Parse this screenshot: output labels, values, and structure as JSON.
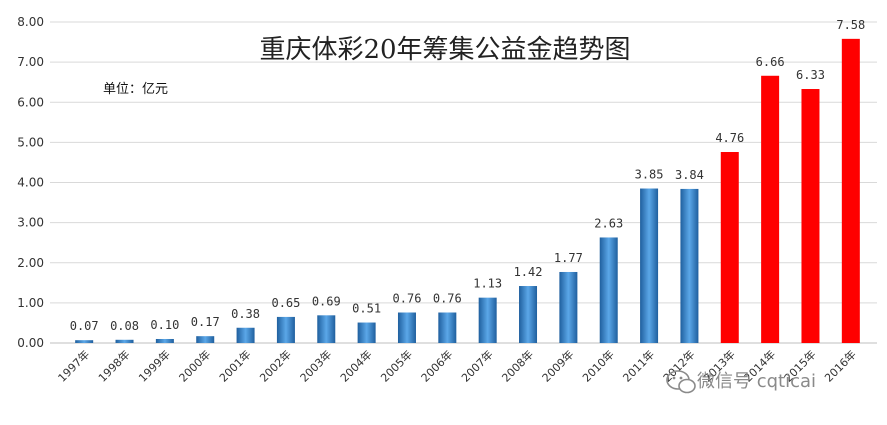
{
  "chart_data": {
    "type": "bar",
    "title": "重庆体彩20年筹集公益金趋势图",
    "unit_note": "单位：亿元",
    "categories": [
      "1997年",
      "1998年",
      "1999年",
      "2000年",
      "2001年",
      "2002年",
      "2003年",
      "2004年",
      "2005年",
      "2006年",
      "2007年",
      "2008年",
      "2009年",
      "2010年",
      "2011年",
      "2012年",
      "2013年",
      "2014年",
      "2015年",
      "2016年"
    ],
    "values": [
      0.07,
      0.08,
      0.1,
      0.17,
      0.38,
      0.65,
      0.69,
      0.51,
      0.76,
      0.76,
      1.13,
      1.42,
      1.77,
      2.63,
      3.85,
      3.84,
      4.76,
      6.66,
      6.33,
      7.58
    ],
    "value_labels": [
      "0.07",
      "0.08",
      "0.10",
      "0.17",
      "0.38",
      "0.65",
      "0.69",
      "0.51",
      "0.76",
      "0.76",
      "1.13",
      "1.42",
      "1.77",
      "2.63",
      "3.85",
      "3.84",
      "4.76",
      "6.66",
      "6.33",
      "7.58"
    ],
    "yticks": [
      "0.00",
      "1.00",
      "2.00",
      "3.00",
      "4.00",
      "5.00",
      "6.00",
      "7.00",
      "8.00"
    ],
    "ylim": [
      0,
      8
    ],
    "grid": true,
    "colors": {
      "blue": "#3f8fd6",
      "blue_dark": "#1f5f9e",
      "red": "#ff0000"
    },
    "red_from_index": 16
  },
  "watermark": {
    "text": "微信号 cqticai",
    "icon": "wechat-icon"
  }
}
